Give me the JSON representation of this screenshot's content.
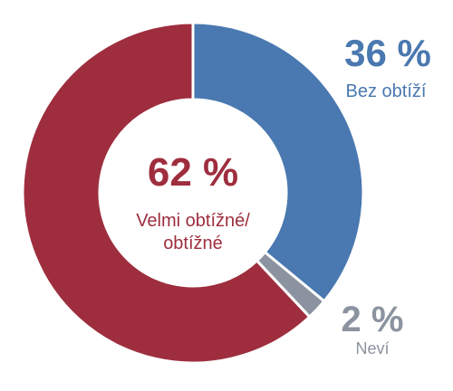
{
  "chart_data": {
    "type": "pie",
    "variant": "donut",
    "segments": [
      {
        "label": "Bez obtíží",
        "value": 36,
        "value_text": "36 %",
        "color": "#4a78b0"
      },
      {
        "label": "Neví",
        "value": 2,
        "value_text": "2 %",
        "color": "#8c93a0"
      },
      {
        "label": "Velmi obtížné/ obtížné",
        "value_lines": [
          "Velmi obtížné/",
          "obtížné"
        ],
        "value": 62,
        "value_text": "62 %",
        "color": "#9e2e3e"
      }
    ]
  }
}
